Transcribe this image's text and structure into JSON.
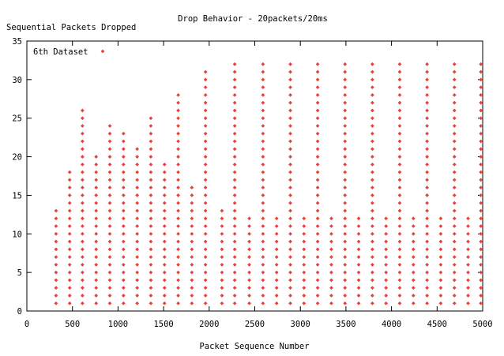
{
  "chart_data": {
    "type": "scatter",
    "title": "Drop Behavior - 20packets/20ms",
    "xlabel": "Packet Sequence Number",
    "ylabel": "Sequential Packets Dropped",
    "xlim": [
      0,
      5000
    ],
    "ylim": [
      0,
      35
    ],
    "xticks": [
      "0",
      "500",
      "1000",
      "1500",
      "2000",
      "2500",
      "3000",
      "3500",
      "4000",
      "4500",
      "5000"
    ],
    "yticks": [
      "0",
      "5",
      "10",
      "15",
      "20",
      "25",
      "30",
      "35"
    ],
    "grid": false,
    "legend_position": "top-left",
    "series": [
      {
        "name": "6th Dataset",
        "color": "#e8423c",
        "marker": "diamond",
        "runs": [
          {
            "x": 320,
            "max": 13
          },
          {
            "x": 470,
            "max": 18
          },
          {
            "x": 610,
            "max": 26
          },
          {
            "x": 760,
            "max": 20
          },
          {
            "x": 910,
            "max": 24
          },
          {
            "x": 1060,
            "max": 23
          },
          {
            "x": 1210,
            "max": 21
          },
          {
            "x": 1360,
            "max": 25
          },
          {
            "x": 1510,
            "max": 19
          },
          {
            "x": 1660,
            "max": 28
          },
          {
            "x": 1810,
            "max": 16
          },
          {
            "x": 1960,
            "max": 31
          },
          {
            "x": 2140,
            "max": 13
          },
          {
            "x": 2280,
            "max": 32
          },
          {
            "x": 2440,
            "max": 12
          },
          {
            "x": 2590,
            "max": 32
          },
          {
            "x": 2740,
            "max": 12
          },
          {
            "x": 2890,
            "max": 32
          },
          {
            "x": 3040,
            "max": 12
          },
          {
            "x": 3190,
            "max": 32
          },
          {
            "x": 3340,
            "max": 12
          },
          {
            "x": 3490,
            "max": 32
          },
          {
            "x": 3640,
            "max": 12
          },
          {
            "x": 3790,
            "max": 32
          },
          {
            "x": 3940,
            "max": 12
          },
          {
            "x": 4090,
            "max": 32
          },
          {
            "x": 4240,
            "max": 12
          },
          {
            "x": 4390,
            "max": 32
          },
          {
            "x": 4540,
            "max": 12
          },
          {
            "x": 4690,
            "max": 32
          },
          {
            "x": 4840,
            "max": 12
          },
          {
            "x": 4980,
            "max": 32
          }
        ]
      }
    ]
  }
}
